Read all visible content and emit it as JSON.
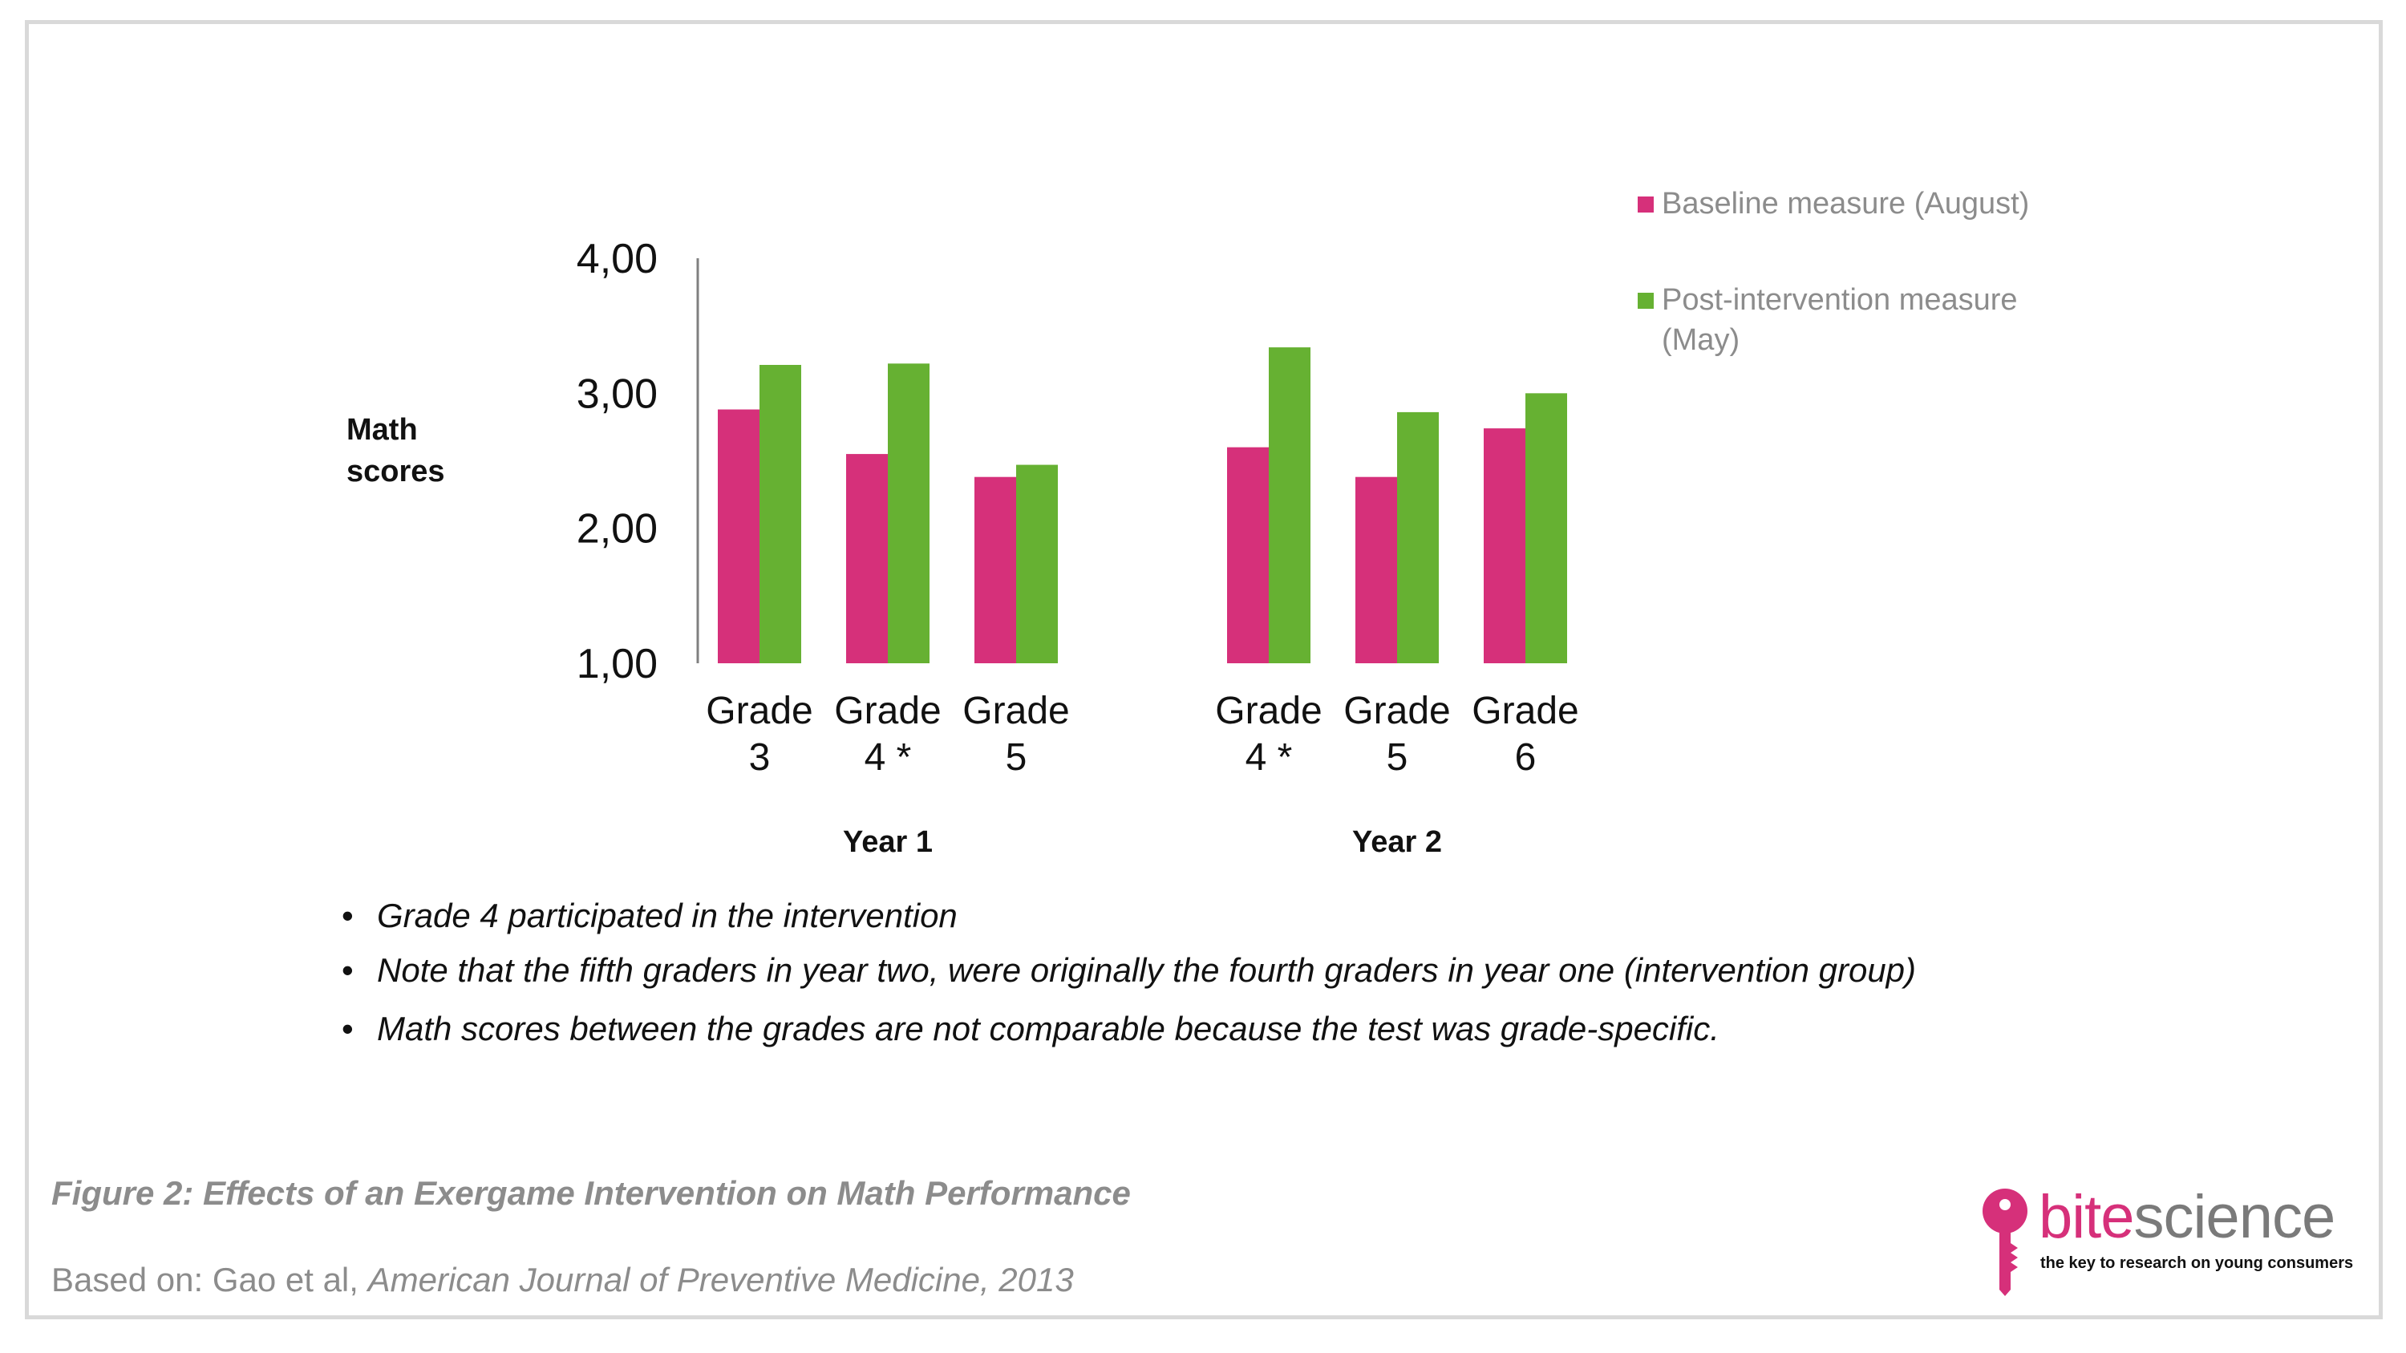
{
  "chart_data": {
    "type": "bar",
    "title": "",
    "ylabel": "Math scores",
    "ylabel_lines": [
      "Math",
      "scores"
    ],
    "ylim": [
      1,
      4
    ],
    "yticks": [
      1,
      2,
      3,
      4
    ],
    "ytick_labels": [
      "1,00",
      "2,00",
      "3,00",
      "4,00"
    ],
    "grid": false,
    "legend_position": "top-right",
    "groups": [
      {
        "name": "Year 1",
        "categories": [
          {
            "label_lines": [
              "Grade",
              "3"
            ]
          },
          {
            "label_lines": [
              "Grade",
              "4 *"
            ]
          },
          {
            "label_lines": [
              "Grade",
              "5"
            ]
          }
        ]
      },
      {
        "name": "Year 2",
        "categories": [
          {
            "label_lines": [
              "Grade",
              "4 *"
            ]
          },
          {
            "label_lines": [
              "Grade",
              "5"
            ]
          },
          {
            "label_lines": [
              "Grade",
              "6"
            ]
          }
        ]
      }
    ],
    "series": [
      {
        "name": "Baseline measure (August)",
        "name_lines": [
          "Baseline measure (August)"
        ],
        "color": "#d6307a",
        "values": [
          2.88,
          2.55,
          2.38,
          2.6,
          2.38,
          2.74
        ]
      },
      {
        "name": "Post-intervention measure (May)",
        "name_lines": [
          "Post-intervention measure",
          "(May)"
        ],
        "color": "#66b132",
        "values": [
          3.21,
          3.22,
          2.47,
          3.34,
          2.86,
          3.0
        ]
      }
    ]
  },
  "notes": [
    "Grade 4 participated in the intervention",
    "Note that the fifth graders in year two, were originally the fourth graders in year one (intervention group)",
    "Math scores between the grades are not comparable because the test was grade-specific."
  ],
  "caption": "Figure 2: Effects of an Exergame Intervention on Math Performance",
  "source": {
    "prefix": "Based on: Gao et al, ",
    "journal": "American Journal of Preventive Medicine, 2013"
  },
  "logo": {
    "word_part1": "bite",
    "word_part2": "science",
    "tagline": "the key to research on young consumers",
    "colors": {
      "key": "#d6307a",
      "science": "#7a7a7a"
    },
    "icon": "key-icon"
  }
}
